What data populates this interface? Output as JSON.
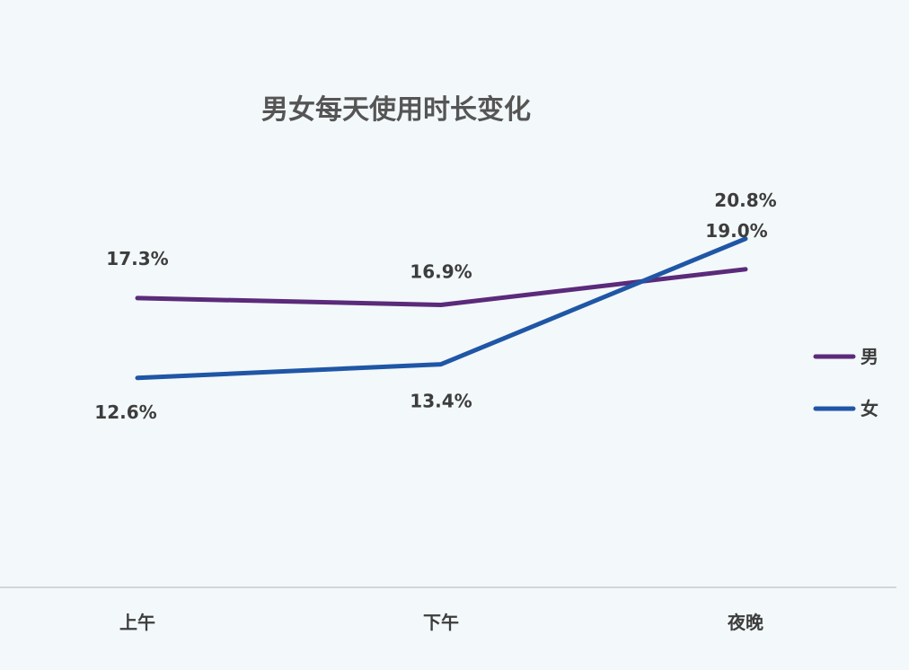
{
  "chart_data": {
    "type": "line",
    "title": "男女每天使用时长变化",
    "categories": [
      "上午",
      "下午",
      "夜晚"
    ],
    "series": [
      {
        "name": "男",
        "values": [
          17.3,
          16.9,
          19.0
        ],
        "labels": [
          "17.3%",
          "16.9%",
          "19.0%"
        ],
        "color": "#5b2a7a"
      },
      {
        "name": "女",
        "values": [
          12.6,
          13.4,
          20.8
        ],
        "labels": [
          "12.6%",
          "13.4%",
          "20.8%"
        ],
        "color": "#1f56a6"
      }
    ],
    "ylim": [
      5,
      25
    ],
    "legend_position": "right",
    "grid": false
  },
  "colors": {
    "background": "#f3f8fa",
    "axis": "#d0d6da",
    "text": "#3d3d3d"
  }
}
